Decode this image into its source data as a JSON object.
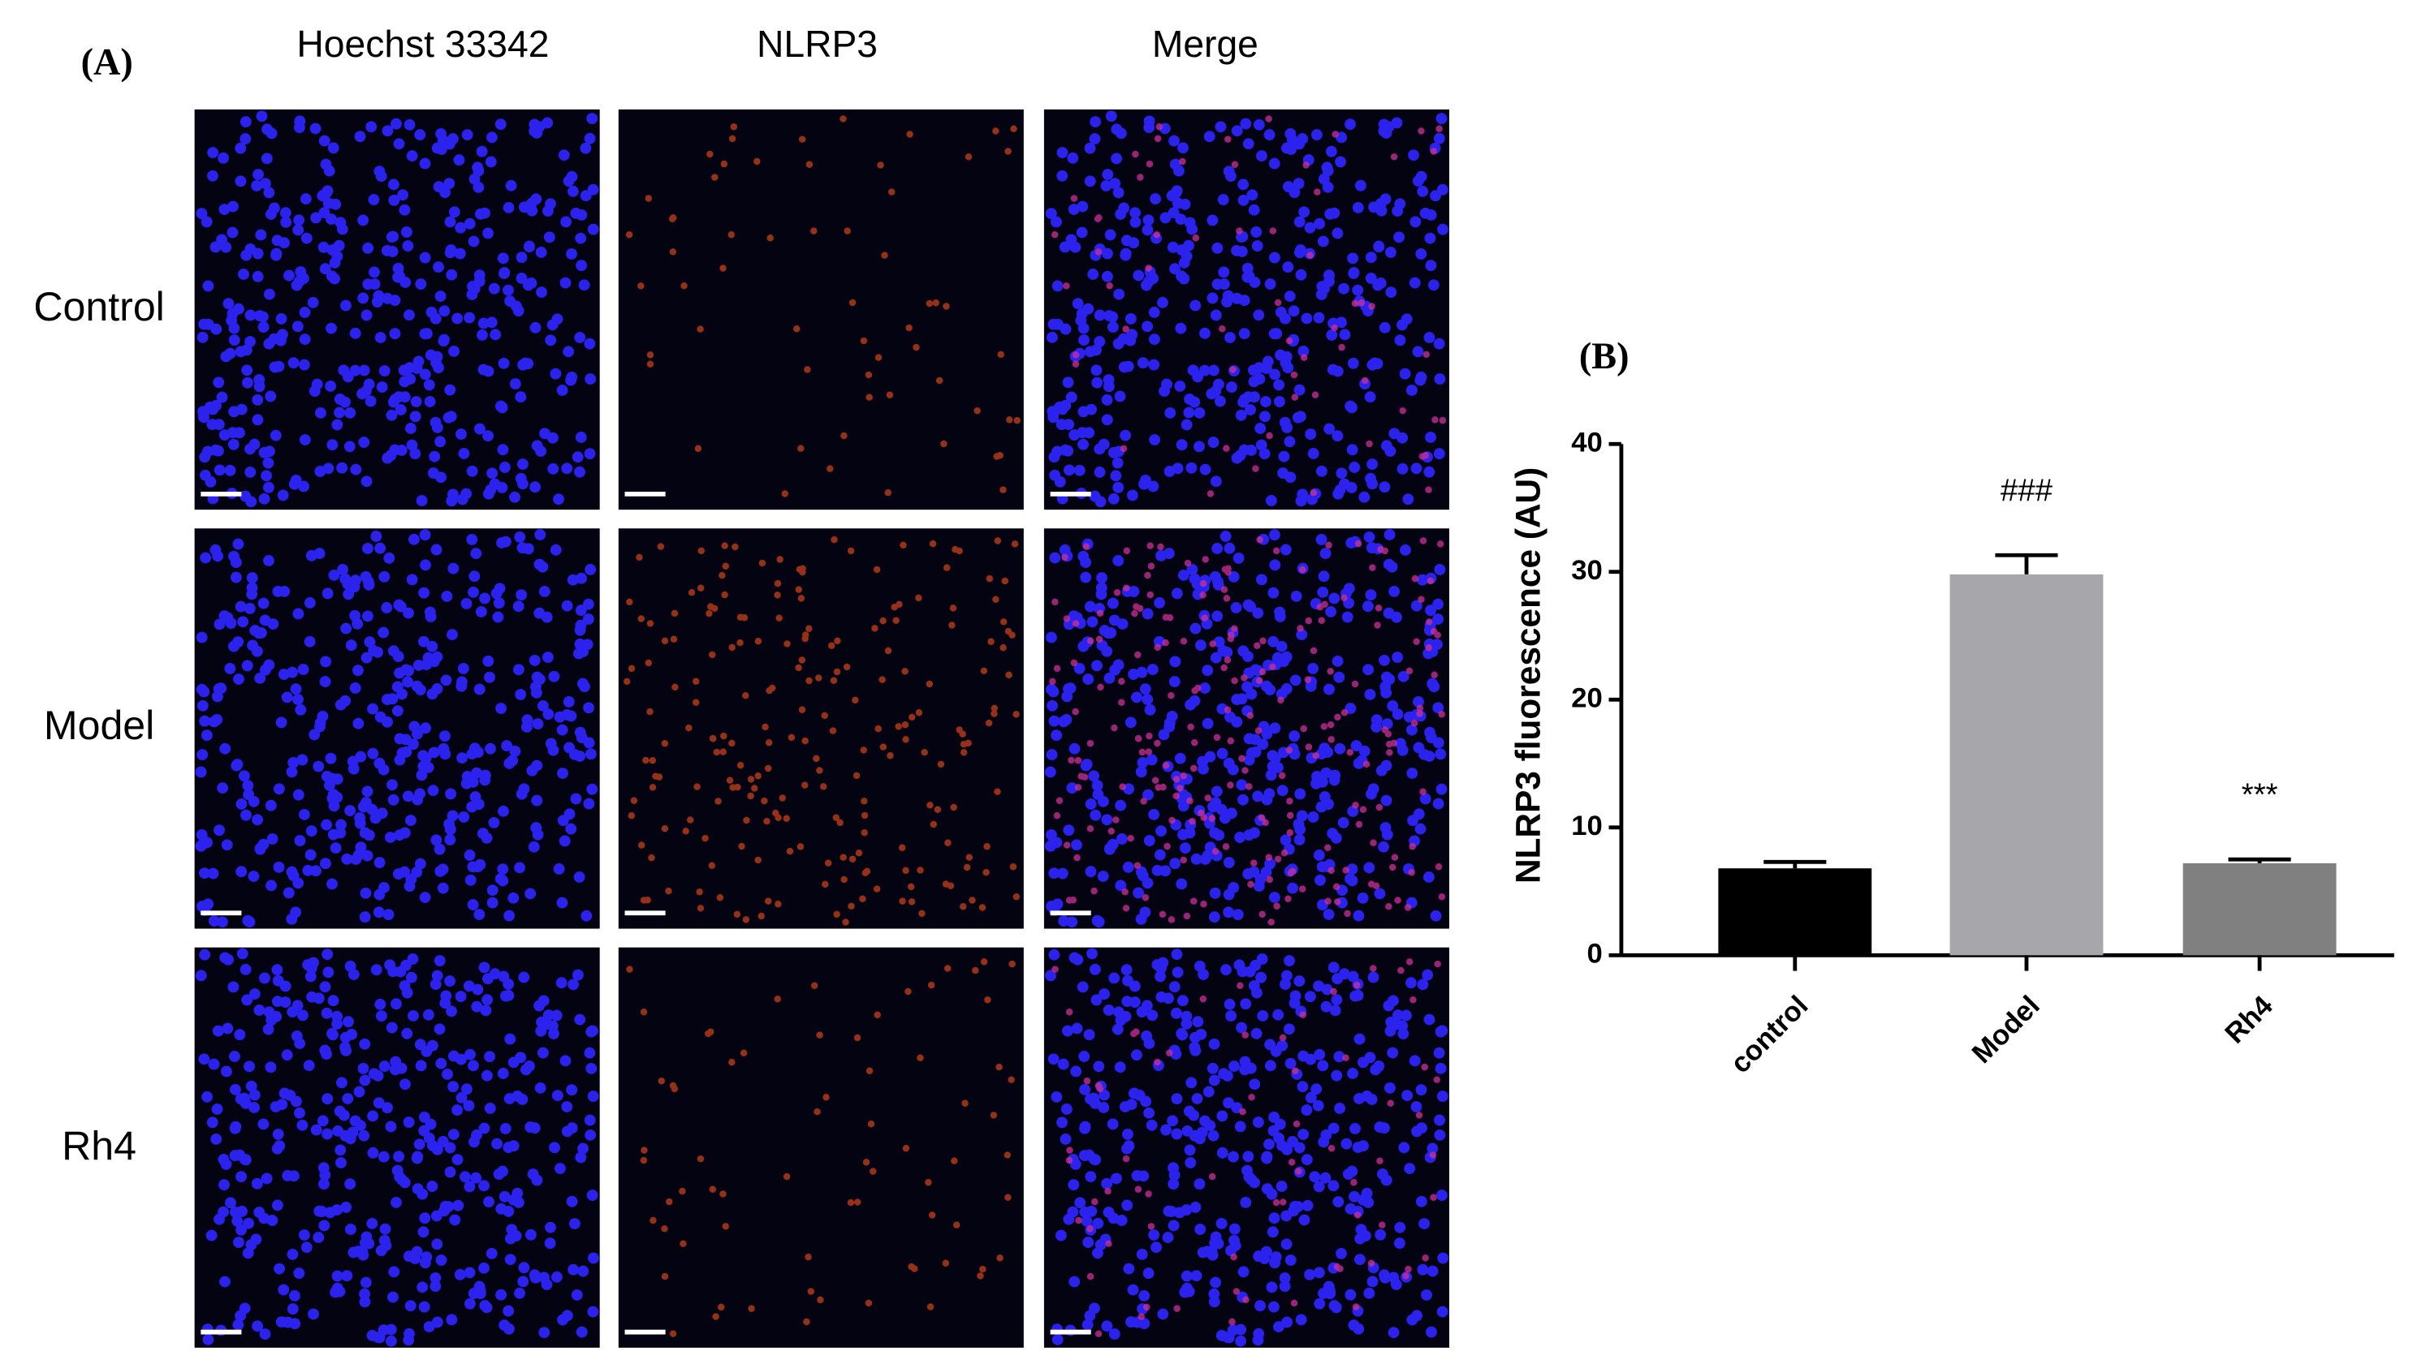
{
  "panel_a": {
    "label": "(A)",
    "columns": [
      "Hoechst 33342",
      "NLRP3",
      "Merge"
    ],
    "rows": [
      "Control",
      "Model",
      "Rh4"
    ]
  },
  "chart_data": {
    "type": "bar",
    "panel_label": "(B)",
    "y_label": "NLRP3 fluorescence (AU)",
    "categories": [
      "control",
      "Model",
      "Rh4"
    ],
    "values": [
      6.8,
      29.8,
      7.2
    ],
    "errors": [
      0.5,
      1.5,
      0.3
    ],
    "colors": [
      "#000000",
      "#a7a7ab",
      "#808080"
    ],
    "annotations": [
      {
        "category": "Model",
        "text": "###"
      },
      {
        "category": "Rh4",
        "text": "***"
      }
    ],
    "ylim": [
      0,
      40
    ],
    "yticks": [
      0,
      10,
      20,
      30,
      40
    ]
  }
}
